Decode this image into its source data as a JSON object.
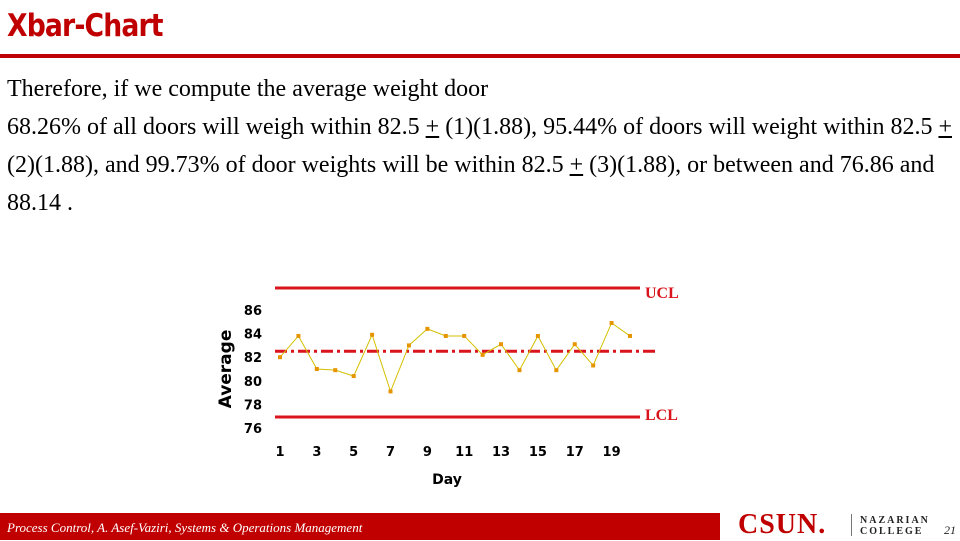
{
  "slide": {
    "title": "Xbar-Chart",
    "paragraphs": [
      {
        "text": "Therefore, if we compute the average weight door"
      },
      {
        "parts": [
          "68.26% of all doors will weigh within 82.5 ",
          "+",
          " (1)(1.88), 95.44% of doors will weight within 82.5 ",
          "+",
          " (2)(1.88), and 99.73% of door weights will be within 82.5 ",
          "+",
          " (3)(1.88), or between and 76.86 and 88.14 ."
        ]
      }
    ]
  },
  "chart_data": {
    "type": "line",
    "xlabel": "Day",
    "ylabel": "Average",
    "ylim": [
      76,
      86
    ],
    "xlim": [
      1,
      20
    ],
    "x_ticks": [
      1,
      3,
      5,
      7,
      9,
      11,
      13,
      15,
      17,
      19
    ],
    "y_ticks": [
      76,
      78,
      80,
      82,
      84,
      86
    ],
    "x": [
      1,
      2,
      3,
      4,
      5,
      6,
      7,
      8,
      9,
      10,
      11,
      12,
      13,
      14,
      15,
      16,
      17,
      18,
      19,
      20
    ],
    "values": [
      82.0,
      83.8,
      81.0,
      80.9,
      80.4,
      83.9,
      79.1,
      83.0,
      84.4,
      83.8,
      83.8,
      82.2,
      83.1,
      80.9,
      83.8,
      80.9,
      83.1,
      81.3,
      84.9,
      83.8
    ],
    "series_color": "#d4c000",
    "marker_color": "#e69500",
    "center_line": 82.5,
    "limit_lines": [
      {
        "label": "UCL"
      },
      {
        "label": "LCL"
      }
    ],
    "line_color": "#d9141c"
  },
  "footer": {
    "citation": "Process Control, A. Asef-Vaziri, Systems & Operations Management",
    "logo_main": "CSUN.",
    "logo_line1": "NAZARIAN",
    "logo_line2": "COLLEGE",
    "page_number": "21"
  }
}
